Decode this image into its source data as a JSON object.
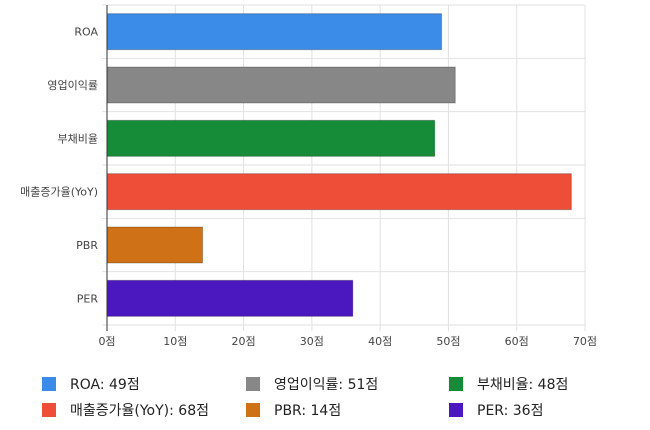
{
  "chart_data": {
    "type": "bar",
    "orientation": "horizontal",
    "categories": [
      "ROA",
      "영업이익률",
      "부채비율",
      "매출증가율(YoY)",
      "PBR",
      "PER"
    ],
    "values": [
      49,
      51,
      48,
      68,
      14,
      36
    ],
    "colors": [
      "#3B8BE8",
      "#878787",
      "#178C38",
      "#EE4D38",
      "#CF7217",
      "#4B17BF"
    ],
    "x_ticks": [
      "0점",
      "10점",
      "20점",
      "30점",
      "40점",
      "50점",
      "60점",
      "70점"
    ],
    "xlim": [
      0,
      70
    ],
    "grid": true,
    "legend": {
      "position": "bottom",
      "items": [
        {
          "label": "ROA: 49점",
          "color": "#3B8BE8"
        },
        {
          "label": "영업이익률: 51점",
          "color": "#878787"
        },
        {
          "label": "부채비율: 48점",
          "color": "#178C38"
        },
        {
          "label": "매출증가율(YoY): 68점",
          "color": "#EE4D38"
        },
        {
          "label": "PBR: 14점",
          "color": "#CF7217"
        },
        {
          "label": "PER: 36점",
          "color": "#4B17BF"
        }
      ]
    }
  }
}
